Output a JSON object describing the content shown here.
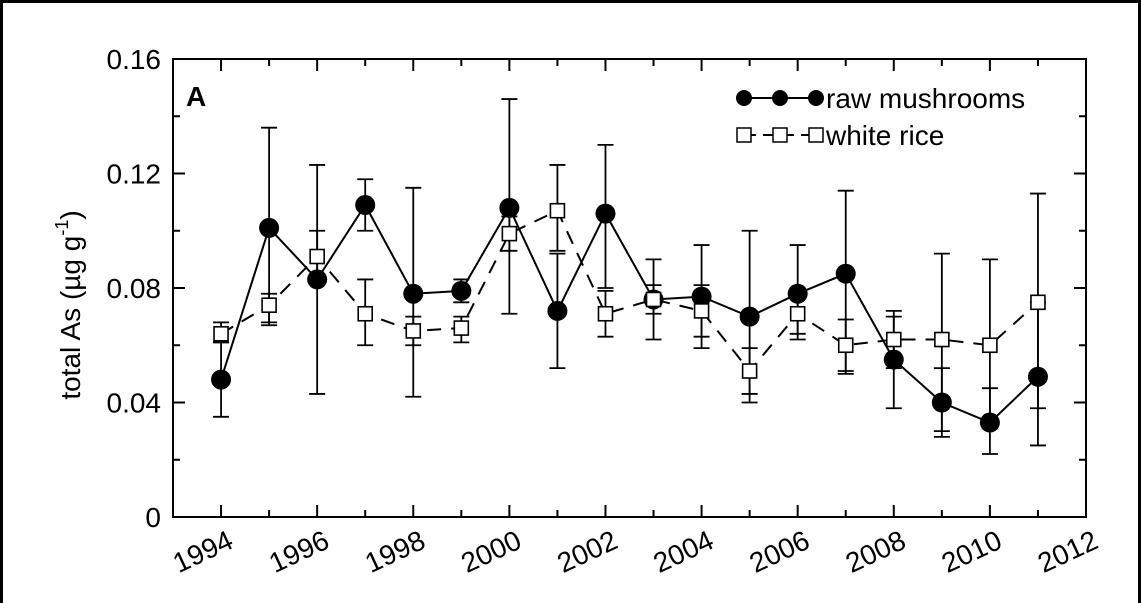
{
  "chart_data": {
    "type": "line",
    "panel_label": "A",
    "ylabel": {
      "main": "total As (µg g",
      "sup": "-1",
      "close": ")"
    },
    "xlim": [
      1993,
      2012
    ],
    "ylim": [
      0,
      0.16
    ],
    "x_ticks": [
      1994,
      1996,
      1998,
      2000,
      2002,
      2004,
      2006,
      2008,
      2010,
      2012
    ],
    "x_tick_labels": [
      "1994",
      "1996",
      "1998",
      "2000",
      "2002",
      "2004",
      "2006",
      "2008",
      "2010",
      "2012"
    ],
    "y_ticks": [
      0,
      0.04,
      0.08,
      0.12,
      0.16
    ],
    "y_tick_labels": [
      "0",
      "0.04",
      "0.08",
      "0.12",
      "0.16"
    ],
    "legend_position": "top-right",
    "series": [
      {
        "name": "raw mushrooms",
        "marker": "filled-circle",
        "line": "solid",
        "color": "#000000",
        "x": [
          1994,
          1995,
          1996,
          1997,
          1998,
          1999,
          2000,
          2001,
          2002,
          2003,
          2004,
          2005,
          2006,
          2007,
          2008,
          2009,
          2010,
          2011
        ],
        "y": [
          0.048,
          0.101,
          0.083,
          0.109,
          0.078,
          0.079,
          0.108,
          0.072,
          0.106,
          0.076,
          0.077,
          0.07,
          0.078,
          0.085,
          0.055,
          0.04,
          0.033,
          0.049
        ],
        "err_low": [
          0.035,
          0.067,
          0.043,
          0.1,
          0.042,
          0.075,
          0.071,
          0.052,
          0.08,
          0.071,
          0.059,
          0.04,
          0.062,
          0.051,
          0.038,
          0.028,
          0.022,
          0.025
        ],
        "err_high": [
          0.061,
          0.136,
          0.123,
          0.118,
          0.115,
          0.083,
          0.146,
          0.092,
          0.13,
          0.081,
          0.095,
          0.1,
          0.095,
          0.114,
          0.072,
          0.052,
          0.045,
          0.075
        ]
      },
      {
        "name": "white rice",
        "marker": "open-square",
        "line": "dashed",
        "color": "#000000",
        "x": [
          1994,
          1995,
          1996,
          1997,
          1998,
          1999,
          2000,
          2001,
          2002,
          2003,
          2004,
          2005,
          2006,
          2007,
          2008,
          2009,
          2010,
          2011
        ],
        "y": [
          0.064,
          0.074,
          0.091,
          0.071,
          0.065,
          0.066,
          0.099,
          0.107,
          0.071,
          0.076,
          0.072,
          0.051,
          0.071,
          0.06,
          0.062,
          0.062,
          0.06,
          0.075
        ],
        "err_low": [
          0.061,
          0.068,
          0.082,
          0.06,
          0.06,
          0.061,
          0.093,
          0.093,
          0.063,
          0.062,
          0.063,
          0.043,
          0.064,
          0.05,
          0.052,
          0.03,
          0.031,
          0.038
        ],
        "err_high": [
          0.068,
          0.078,
          0.1,
          0.083,
          0.07,
          0.07,
          0.105,
          0.123,
          0.079,
          0.09,
          0.081,
          0.059,
          0.078,
          0.069,
          0.07,
          0.092,
          0.09,
          0.113
        ]
      }
    ]
  }
}
